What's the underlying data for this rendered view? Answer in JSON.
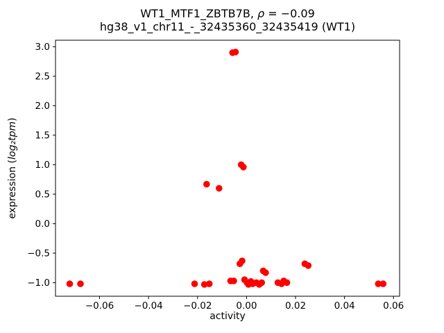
{
  "chart_data": {
    "type": "scatter",
    "title": "WT1_MTF1_ZBTB7B, ρ = −0.09",
    "subtitle": "hg38_v1_chr11_-_32435360_32435419 (WT1)",
    "title_parts": {
      "prefix": "WT1_MTF1_ZBTB7B, ",
      "rho": "ρ",
      "rest": " = −0.09"
    },
    "xlabel": "activity",
    "ylabel": "expression (log₂tpm)",
    "ylabel_parts": {
      "prefix": "expression (",
      "math": "log₂tpm",
      "suffix": ")"
    },
    "marker_color": "#ff0000",
    "grid": false,
    "legend": "none",
    "xlim": [
      -0.078,
      0.0625
    ],
    "ylim": [
      -1.23,
      3.11
    ],
    "xticks": {
      "values": [
        -0.06,
        -0.04,
        -0.02,
        0.0,
        0.02,
        0.04,
        0.06
      ],
      "labels": [
        "−0.06",
        "−0.04",
        "−0.02",
        "0.00",
        "0.02",
        "0.04",
        "0.06"
      ]
    },
    "yticks": {
      "values": [
        -1.0,
        -0.5,
        0.0,
        0.5,
        1.0,
        1.5,
        2.0,
        2.5,
        3.0
      ],
      "labels": [
        "−1.0",
        "−0.5",
        "0.0",
        "0.5",
        "1.0",
        "1.5",
        "2.0",
        "2.5",
        "3.0"
      ]
    },
    "points": [
      [
        -0.0057,
        2.9
      ],
      [
        -0.0045,
        2.91
      ],
      [
        -0.0022,
        1.0
      ],
      [
        -0.0013,
        0.96
      ],
      [
        -0.0163,
        0.67
      ],
      [
        -0.0112,
        0.6
      ],
      [
        -0.0027,
        -0.68
      ],
      [
        -0.0018,
        -0.63
      ],
      [
        0.0238,
        -0.68
      ],
      [
        0.0252,
        -0.71
      ],
      [
        0.0068,
        -0.8
      ],
      [
        0.0078,
        -0.83
      ],
      [
        -0.0065,
        -0.97
      ],
      [
        -0.0052,
        -0.97
      ],
      [
        -0.0008,
        -0.95
      ],
      [
        0.0002,
        -1.0
      ],
      [
        0.0008,
        -1.03
      ],
      [
        0.0018,
        -0.98
      ],
      [
        0.0025,
        -1.02
      ],
      [
        0.004,
        -1.0
      ],
      [
        0.0052,
        -1.03
      ],
      [
        0.0062,
        -1.0
      ],
      [
        0.0128,
        -1.0
      ],
      [
        0.0143,
        -1.02
      ],
      [
        0.0152,
        -0.97
      ],
      [
        0.0165,
        -1.0
      ],
      [
        -0.0722,
        -1.02
      ],
      [
        -0.0678,
        -1.02
      ],
      [
        -0.0212,
        -1.02
      ],
      [
        -0.0172,
        -1.03
      ],
      [
        -0.0152,
        -1.02
      ],
      [
        0.0538,
        -1.02
      ],
      [
        0.0558,
        -1.02
      ]
    ]
  }
}
